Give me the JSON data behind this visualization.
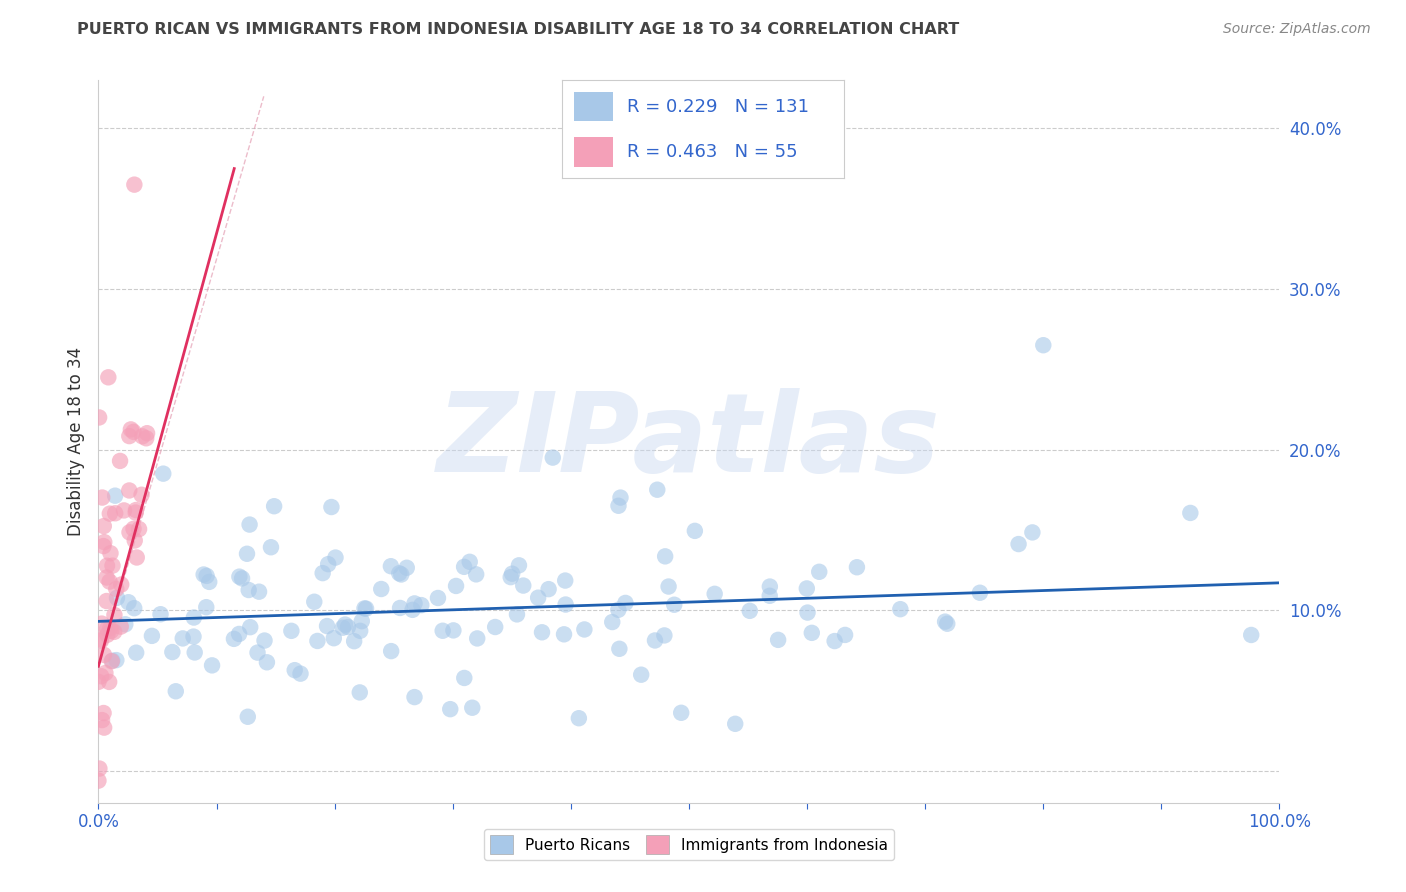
{
  "title": "PUERTO RICAN VS IMMIGRANTS FROM INDONESIA DISABILITY AGE 18 TO 34 CORRELATION CHART",
  "source": "Source: ZipAtlas.com",
  "xlabel": "",
  "ylabel": "Disability Age 18 to 34",
  "xlim": [
    0,
    1.0
  ],
  "ylim": [
    -0.02,
    0.43
  ],
  "xticks": [
    0.0,
    0.1,
    0.2,
    0.3,
    0.4,
    0.5,
    0.6,
    0.7,
    0.8,
    0.9,
    1.0
  ],
  "xticklabels": [
    "0.0%",
    "",
    "",
    "",
    "",
    "",
    "",
    "",
    "",
    "",
    "100.0%"
  ],
  "yticks": [
    0.0,
    0.1,
    0.2,
    0.3,
    0.4
  ],
  "yticklabels": [
    "",
    "10.0%",
    "20.0%",
    "30.0%",
    "40.0%"
  ],
  "blue_color": "#a8c8e8",
  "pink_color": "#f4a0b8",
  "blue_line_color": "#2060b0",
  "pink_line_color": "#e03060",
  "legend_R_blue": "0.229",
  "legend_N_blue": "131",
  "legend_R_pink": "0.463",
  "legend_N_pink": "55",
  "blue_label": "Puerto Ricans",
  "pink_label": "Immigrants from Indonesia",
  "watermark": "ZIPatlas",
  "background_color": "#ffffff",
  "blue_trend_x": [
    0.0,
    1.0
  ],
  "blue_trend_y": [
    0.093,
    0.117
  ],
  "pink_trend_x": [
    0.0,
    0.115
  ],
  "pink_trend_y": [
    0.065,
    0.375
  ],
  "blue_scatter_seed": 42,
  "pink_scatter_seed": 7,
  "blue_N": 131,
  "pink_N": 55,
  "marker_size": 140,
  "text_color_blue": "#3366cc",
  "title_color": "#444444"
}
